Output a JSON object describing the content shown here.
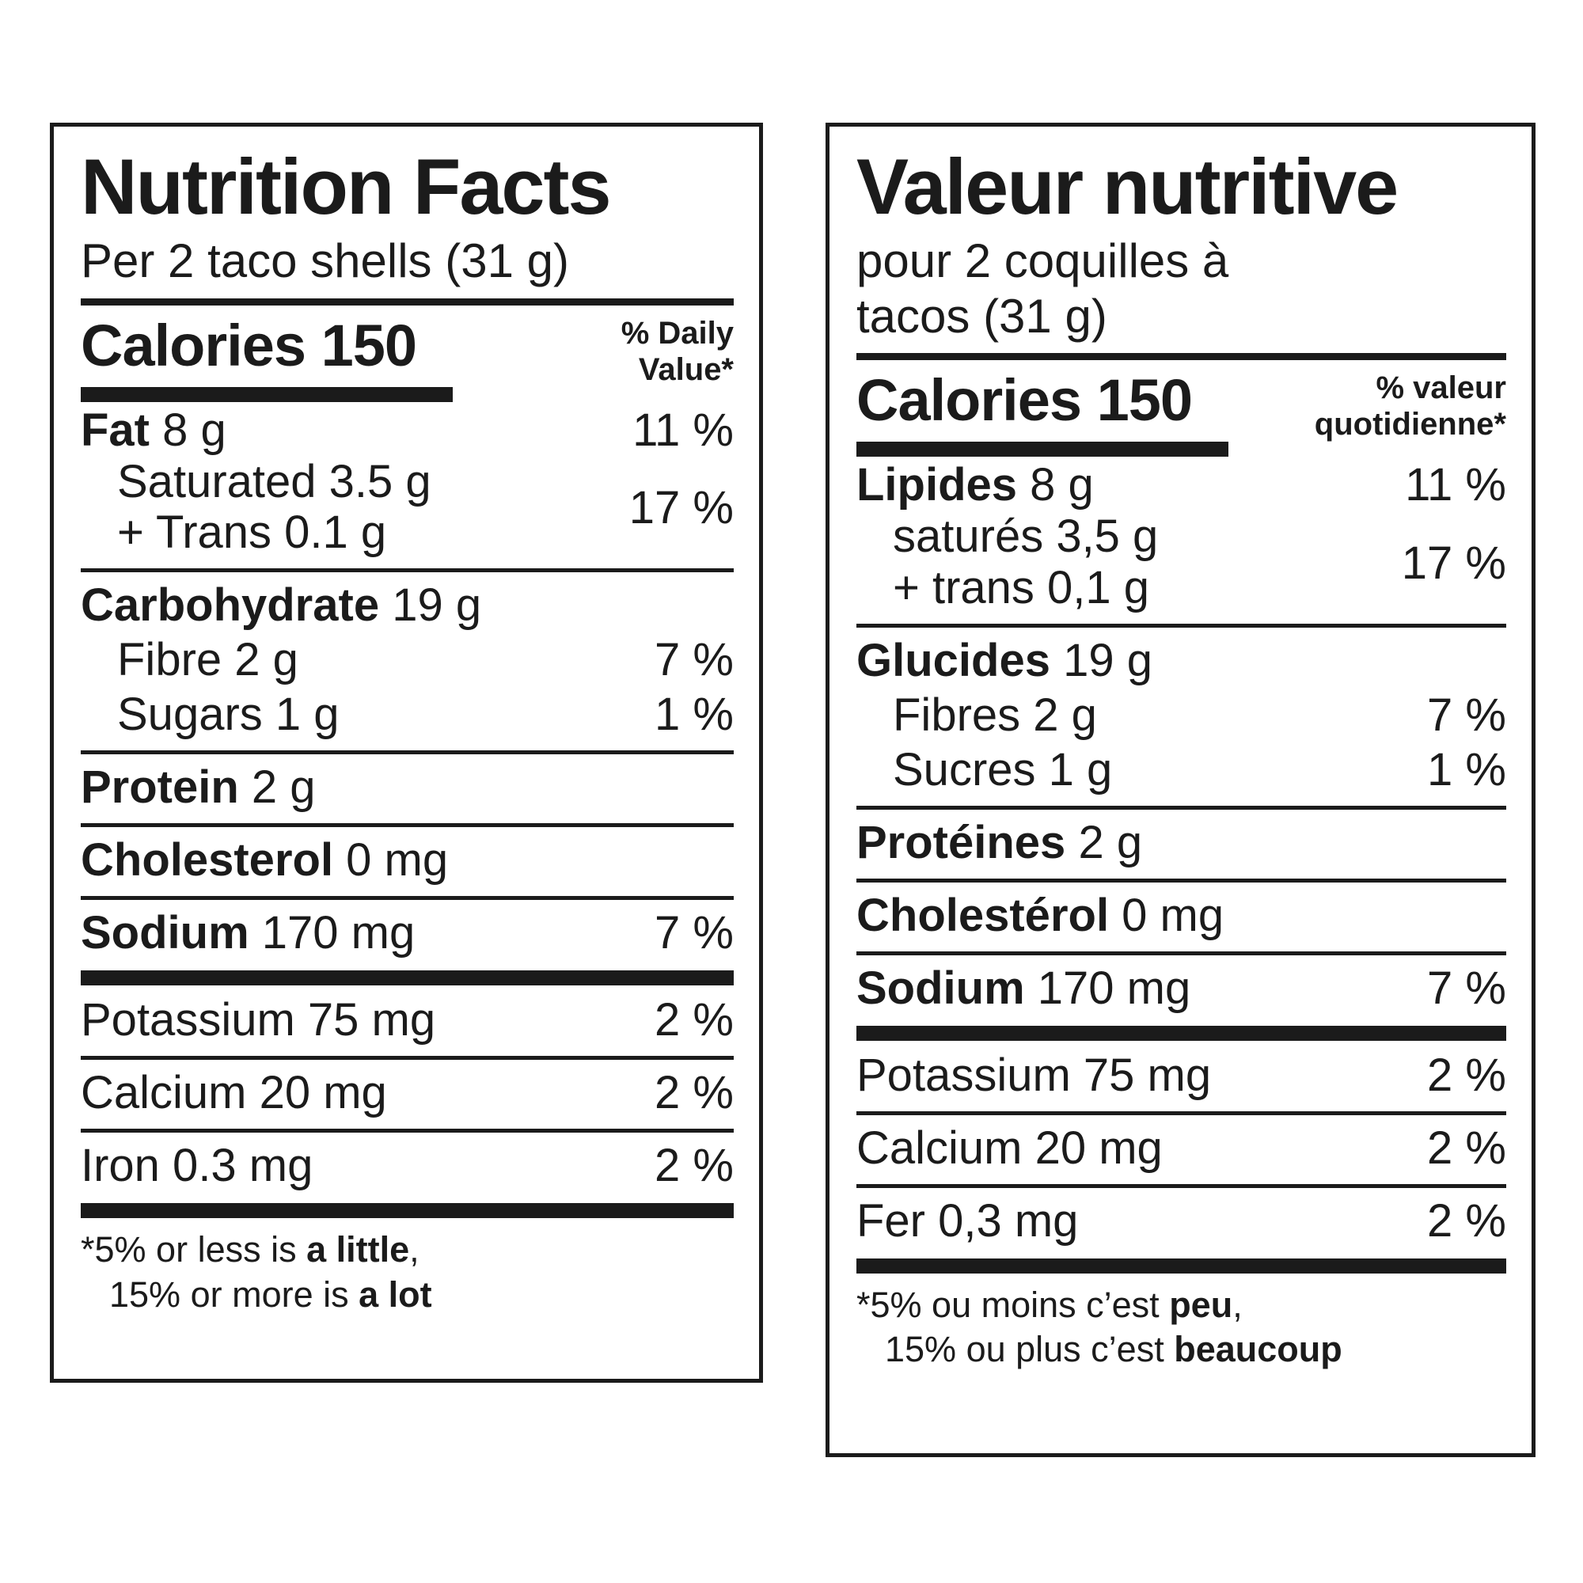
{
  "colors": {
    "ink": "#1b1b1b",
    "background": "#ffffff"
  },
  "panels": {
    "en": {
      "title": "Nutrition Facts",
      "serving_line1": "Per 2 taco shells (31 g)",
      "calories": "Calories 150",
      "dv_head_line1": "% Daily",
      "dv_head_line2": "Value*",
      "fat": {
        "bold": "Fat",
        "rest": " 8 g",
        "pct": "11 %",
        "sub1": "Saturated 3.5 g",
        "sub2": "+ Trans 0.1 g",
        "sub_pct": "17 %"
      },
      "carb": {
        "bold": "Carbohydrate",
        "rest": " 19 g",
        "sub1": "Fibre 2 g",
        "sub1_pct": "7 %",
        "sub2": "Sugars 1 g",
        "sub2_pct": "1 %"
      },
      "protein": {
        "bold": "Protein",
        "rest": " 2 g"
      },
      "cholesterol": {
        "bold": "Cholesterol",
        "rest": " 0 mg"
      },
      "sodium": {
        "bold": "Sodium",
        "rest": " 170 mg",
        "pct": "7 %"
      },
      "potassium": {
        "label": "Potassium 75 mg",
        "pct": "2 %"
      },
      "calcium": {
        "label": "Calcium 20 mg",
        "pct": "2 %"
      },
      "iron": {
        "label": "Iron 0.3 mg",
        "pct": "2 %"
      },
      "footnote": {
        "l1_pre": "*5% or less is ",
        "l1_bold": "a little",
        "l1_post": ",",
        "l2_pre": "15% or more is ",
        "l2_bold": "a lot"
      }
    },
    "fr": {
      "title": "Valeur nutritive",
      "serving_line1": "pour 2 coquilles à",
      "serving_line2": "tacos (31 g)",
      "calories": "Calories 150",
      "dv_head_line1": "% valeur",
      "dv_head_line2": "quotidienne*",
      "fat": {
        "bold": "Lipides",
        "rest": " 8 g",
        "pct": "11 %",
        "sub1": "saturés 3,5 g",
        "sub2": "+ trans 0,1 g",
        "sub_pct": "17 %"
      },
      "carb": {
        "bold": "Glucides",
        "rest": " 19 g",
        "sub1": "Fibres 2 g",
        "sub1_pct": "7 %",
        "sub2": "Sucres 1 g",
        "sub2_pct": "1 %"
      },
      "protein": {
        "bold": "Protéines",
        "rest": " 2 g"
      },
      "cholesterol": {
        "bold": "Cholestérol",
        "rest": " 0 mg"
      },
      "sodium": {
        "bold": "Sodium",
        "rest": " 170 mg",
        "pct": "7 %"
      },
      "potassium": {
        "label": "Potassium 75 mg",
        "pct": "2 %"
      },
      "calcium": {
        "label": "Calcium 20 mg",
        "pct": "2 %"
      },
      "iron": {
        "label": "Fer 0,3 mg",
        "pct": "2 %"
      },
      "footnote": {
        "l1_pre": "*5% ou moins c’est ",
        "l1_bold": "peu",
        "l1_post": ",",
        "l2_pre": "15% ou plus c’est ",
        "l2_bold": "beaucoup"
      }
    }
  }
}
